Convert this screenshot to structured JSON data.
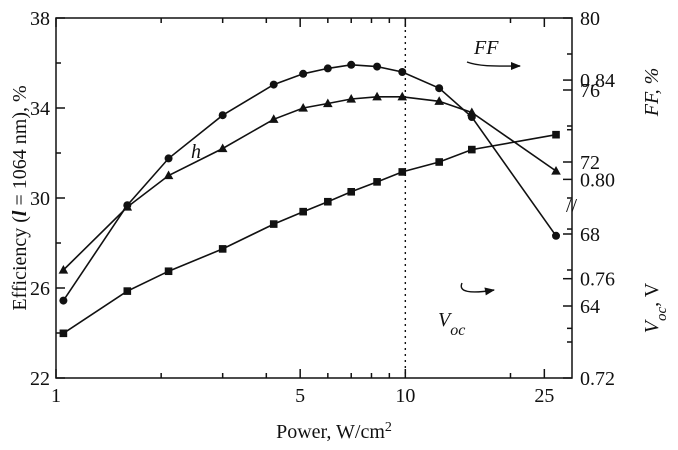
{
  "chart_data": {
    "type": "line",
    "x_axis": {
      "label": "Power, W/cm",
      "label_superscript": "2",
      "scale": "log",
      "range": [
        1,
        30
      ],
      "ticks": [
        1,
        5,
        10,
        25
      ],
      "tick_labels": [
        "1",
        "5",
        "10",
        "25"
      ]
    },
    "left_axis": {
      "label_parts": [
        "Efficiency (",
        "l",
        " = 1064 nm), %"
      ],
      "range": [
        22,
        38
      ],
      "ticks": [
        22,
        26,
        30,
        34,
        38
      ],
      "tick_labels": [
        "22",
        "26",
        "30",
        "34",
        "38"
      ]
    },
    "right_axis_ff": {
      "label": "FF, %",
      "range": [
        60,
        80
      ],
      "ticks": [
        64,
        68,
        72,
        76,
        80
      ],
      "tick_labels": [
        "64",
        "68",
        "72",
        "76",
        "80"
      ]
    },
    "right_axis_voc": {
      "label_main": "V",
      "label_sub": "oc",
      "label_tail": ", V",
      "range": [
        0.72,
        0.865
      ],
      "ticks": [
        0.72,
        0.76,
        0.8,
        0.84
      ],
      "tick_labels": [
        "0.72",
        "0.76",
        "0.80",
        "0.84"
      ]
    },
    "reference_line_x": 10,
    "series": [
      {
        "name": "h",
        "axis": "left",
        "marker": "triangle",
        "x": [
          1.05,
          1.6,
          2.1,
          3.0,
          4.2,
          5.1,
          6.0,
          7.0,
          8.3,
          9.8,
          12.5,
          15.5,
          27.0
        ],
        "y": [
          26.8,
          29.6,
          31.0,
          32.2,
          33.5,
          34.0,
          34.2,
          34.4,
          34.5,
          34.5,
          34.3,
          33.8,
          31.2
        ]
      },
      {
        "name": "FF",
        "axis": "right_ff",
        "marker": "circle",
        "x": [
          1.05,
          1.6,
          2.1,
          3.0,
          4.2,
          5.1,
          6.0,
          7.0,
          8.3,
          9.8,
          12.5,
          15.5,
          27.0
        ],
        "y": [
          64.3,
          69.6,
          72.2,
          74.6,
          76.3,
          76.9,
          77.2,
          77.4,
          77.3,
          77.0,
          76.1,
          74.5,
          67.9
        ]
      },
      {
        "name": "V",
        "name_sub": "oc",
        "axis": "right_voc",
        "marker": "square",
        "x": [
          1.05,
          1.6,
          2.1,
          3.0,
          4.2,
          5.1,
          6.0,
          7.0,
          8.3,
          9.8,
          12.5,
          15.5,
          27.0
        ],
        "y": [
          0.738,
          0.755,
          0.763,
          0.772,
          0.782,
          0.787,
          0.791,
          0.795,
          0.799,
          0.803,
          0.807,
          0.812,
          0.818
        ]
      }
    ],
    "annotations": {
      "eta_label": "h",
      "ff_label": "FF",
      "voc_label_main": "V",
      "voc_label_sub": "oc",
      "axis_break_mark": "//"
    },
    "grid": false,
    "legend": "none"
  }
}
